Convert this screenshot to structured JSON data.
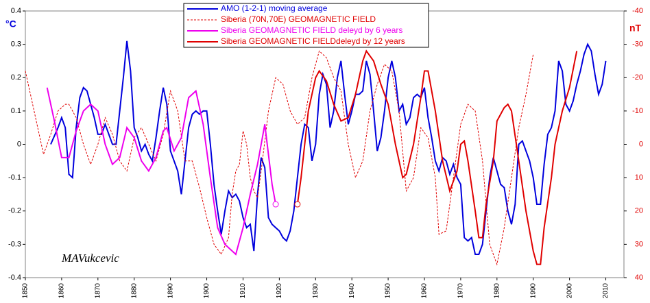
{
  "chart_data": {
    "type": "line",
    "ylabel": "°C",
    "y2label": "nT",
    "annotation": "MAVukcevic",
    "xlim": [
      1850,
      2015
    ],
    "xticks": [
      1850,
      1860,
      1870,
      1880,
      1890,
      1900,
      1910,
      1920,
      1930,
      1940,
      1950,
      1960,
      1970,
      1980,
      1990,
      2000,
      2010
    ],
    "ylim": [
      -0.4,
      0.4
    ],
    "yticks": [
      0.4,
      0.3,
      0.2,
      0.1,
      0,
      -0.1,
      -0.2,
      -0.3,
      -0.4
    ],
    "y2lim": [
      40,
      -40
    ],
    "y2ticks": [
      -40,
      -30,
      -20,
      -10,
      0,
      10,
      20,
      30,
      40
    ],
    "y2color": "#e00000",
    "series": [
      {
        "name": "AMO (1-2-1) moving average",
        "color": "#0000dd",
        "width": 2,
        "x": [
          1857,
          1859,
          1860,
          1861,
          1862,
          1863,
          1864,
          1865,
          1866,
          1867,
          1868,
          1869,
          1870,
          1871,
          1872,
          1873,
          1874,
          1875,
          1876,
          1877,
          1878,
          1879,
          1880,
          1881,
          1882,
          1883,
          1884,
          1885,
          1886,
          1887,
          1888,
          1889,
          1890,
          1891,
          1892,
          1893,
          1894,
          1895,
          1896,
          1897,
          1898,
          1899,
          1900,
          1901,
          1902,
          1903,
          1904,
          1905,
          1906,
          1907,
          1908,
          1909,
          1910,
          1911,
          1912,
          1913,
          1914,
          1915,
          1916,
          1917,
          1918,
          1919,
          1920,
          1921,
          1922,
          1923,
          1924,
          1925,
          1926,
          1927,
          1928,
          1929,
          1930,
          1931,
          1932,
          1933,
          1934,
          1935,
          1936,
          1937,
          1938,
          1939,
          1940,
          1941,
          1942,
          1943,
          1944,
          1945,
          1946,
          1947,
          1948,
          1949,
          1950,
          1951,
          1952,
          1953,
          1954,
          1955,
          1956,
          1957,
          1958,
          1959,
          1960,
          1961,
          1962,
          1963,
          1964,
          1965,
          1966,
          1967,
          1968,
          1969,
          1970,
          1971,
          1972,
          1973,
          1974,
          1975,
          1976,
          1977,
          1978,
          1979,
          1980,
          1981,
          1982,
          1983,
          1984,
          1985,
          1986,
          1987,
          1988,
          1989,
          1990,
          1991,
          1992,
          1993,
          1994,
          1995,
          1996,
          1997,
          1998,
          1999,
          2000,
          2001,
          2002,
          2003,
          2004,
          2005,
          2006,
          2007,
          2008,
          2009,
          2010
        ],
        "values": [
          0.0,
          0.05,
          0.08,
          0.05,
          -0.09,
          -0.1,
          0.05,
          0.14,
          0.17,
          0.16,
          0.12,
          0.08,
          0.03,
          0.03,
          0.06,
          0.03,
          0.0,
          0.0,
          0.1,
          0.2,
          0.31,
          0.22,
          0.05,
          0.02,
          -0.02,
          0.0,
          -0.03,
          -0.05,
          0.02,
          0.1,
          0.17,
          0.12,
          -0.02,
          -0.05,
          -0.08,
          -0.15,
          -0.05,
          0.05,
          0.09,
          0.1,
          0.09,
          0.1,
          0.1,
          0.0,
          -0.12,
          -0.2,
          -0.27,
          -0.2,
          -0.14,
          -0.16,
          -0.15,
          -0.17,
          -0.22,
          -0.25,
          -0.24,
          -0.32,
          -0.15,
          -0.04,
          -0.07,
          -0.22,
          -0.24,
          -0.25,
          -0.26,
          -0.28,
          -0.29,
          -0.26,
          -0.2,
          -0.1,
          0.0,
          0.06,
          0.05,
          -0.05,
          0.0,
          0.15,
          0.21,
          0.18,
          0.05,
          0.1,
          0.2,
          0.25,
          0.15,
          0.06,
          0.1,
          0.15,
          0.15,
          0.16,
          0.25,
          0.21,
          0.1,
          -0.02,
          0.02,
          0.1,
          0.2,
          0.25,
          0.2,
          0.1,
          0.12,
          0.06,
          0.08,
          0.14,
          0.15,
          0.14,
          0.17,
          0.08,
          0.02,
          -0.05,
          -0.08,
          -0.04,
          -0.05,
          -0.09,
          -0.06,
          -0.1,
          -0.12,
          -0.28,
          -0.29,
          -0.28,
          -0.33,
          -0.33,
          -0.3,
          -0.2,
          -0.1,
          -0.04,
          -0.08,
          -0.12,
          -0.13,
          -0.2,
          -0.24,
          -0.18,
          0.0,
          0.01,
          -0.02,
          -0.05,
          -0.1,
          -0.18,
          -0.18,
          -0.06,
          0.03,
          0.05,
          0.1,
          0.25,
          0.22,
          0.12,
          0.1,
          0.13,
          0.18,
          0.22,
          0.27,
          0.3,
          0.28,
          0.21,
          0.15,
          0.18,
          0.25
        ]
      },
      {
        "name": "Siberia (70N,70E)  GEOMAGNETIC FIELD",
        "color": "#e00000",
        "width": 1,
        "dashed": true,
        "axis": "y2",
        "x": [
          1850,
          1855,
          1857,
          1859,
          1861,
          1862,
          1864,
          1866,
          1868,
          1870,
          1872,
          1874,
          1876,
          1878,
          1880,
          1882,
          1884,
          1886,
          1888,
          1890,
          1892,
          1894,
          1896,
          1898,
          1900,
          1902,
          1904,
          1906,
          1907,
          1908,
          1909,
          1910,
          1911,
          1912,
          1913,
          1914,
          1915,
          1917,
          1919,
          1921,
          1923,
          1925,
          1927,
          1929,
          1931,
          1933,
          1935,
          1937,
          1939,
          1941,
          1943,
          1945,
          1947,
          1949,
          1951,
          1953,
          1955,
          1957,
          1959,
          1961,
          1963,
          1964,
          1966,
          1968,
          1970,
          1972,
          1974,
          1976,
          1978,
          1980,
          1982,
          1984,
          1986,
          1988,
          1990
        ],
        "values": [
          -22,
          3,
          -3,
          -10,
          -12,
          -12,
          -8,
          0,
          6,
          0,
          -8,
          -3,
          5,
          8,
          -2,
          -5,
          0,
          5,
          -3,
          -16,
          -10,
          5,
          5,
          13,
          22,
          30,
          33,
          28,
          15,
          8,
          6,
          -4,
          0,
          10,
          14,
          16,
          8,
          -10,
          -20,
          -18,
          -10,
          -6,
          -8,
          -20,
          -28,
          -26,
          -20,
          -16,
          0,
          10,
          5,
          -10,
          -18,
          -24,
          -22,
          -10,
          14,
          10,
          -5,
          -2,
          10,
          27,
          26,
          10,
          -6,
          -12,
          -10,
          5,
          30,
          36,
          25,
          10,
          -5,
          -15,
          -27
        ]
      },
      {
        "name": "Siberia  GEOMAGNETIC FIELD deleyd by 6 years",
        "color": "#ee00ee",
        "width": 2,
        "axis": "y2",
        "open_circle": "end",
        "x": [
          1856,
          1858,
          1860,
          1862,
          1864,
          1866,
          1868,
          1870,
          1872,
          1874,
          1876,
          1878,
          1880,
          1882,
          1884,
          1886,
          1888,
          1889,
          1891,
          1893,
          1895,
          1897,
          1899,
          1901,
          1903,
          1905,
          1907,
          1908,
          1910,
          1912,
          1914,
          1916,
          1918,
          1919
        ],
        "values": [
          -17,
          -7,
          4,
          4,
          -4,
          -10,
          -12,
          -10,
          0,
          6,
          4,
          -5,
          -2,
          5,
          8,
          4,
          -4,
          -5,
          2,
          -2,
          -14,
          -16,
          -6,
          10,
          25,
          30,
          32,
          33,
          25,
          15,
          6,
          -6,
          12,
          18
        ]
      },
      {
        "name": "Siberia GEOMAGNETIC FIELDdeleyd by 12 years",
        "color": "#e00000",
        "width": 2,
        "axis": "y2",
        "open_circle": "start",
        "x": [
          1925,
          1926,
          1928,
          1930,
          1931,
          1933,
          1935,
          1937,
          1939,
          1941,
          1943,
          1944,
          1946,
          1948,
          1950,
          1952,
          1954,
          1955,
          1957,
          1959,
          1960,
          1961,
          1963,
          1965,
          1967,
          1969,
          1970,
          1971,
          1972,
          1974,
          1975,
          1976,
          1977,
          1979,
          1980,
          1982,
          1983,
          1984,
          1986,
          1988,
          1990,
          1991,
          1992,
          1993,
          1995,
          1996,
          1998,
          2000,
          2002
        ],
        "values": [
          18,
          10,
          -10,
          -20,
          -22,
          -19,
          -12,
          -7,
          -8,
          -15,
          -25,
          -28,
          -25,
          -18,
          -12,
          0,
          10,
          9,
          0,
          -14,
          -22,
          -22,
          -10,
          5,
          14,
          8,
          0,
          -1,
          5,
          20,
          28,
          28,
          18,
          5,
          -7,
          -11,
          -12,
          -10,
          5,
          20,
          32,
          36,
          36,
          25,
          10,
          0,
          -10,
          -17,
          -28
        ]
      }
    ]
  }
}
